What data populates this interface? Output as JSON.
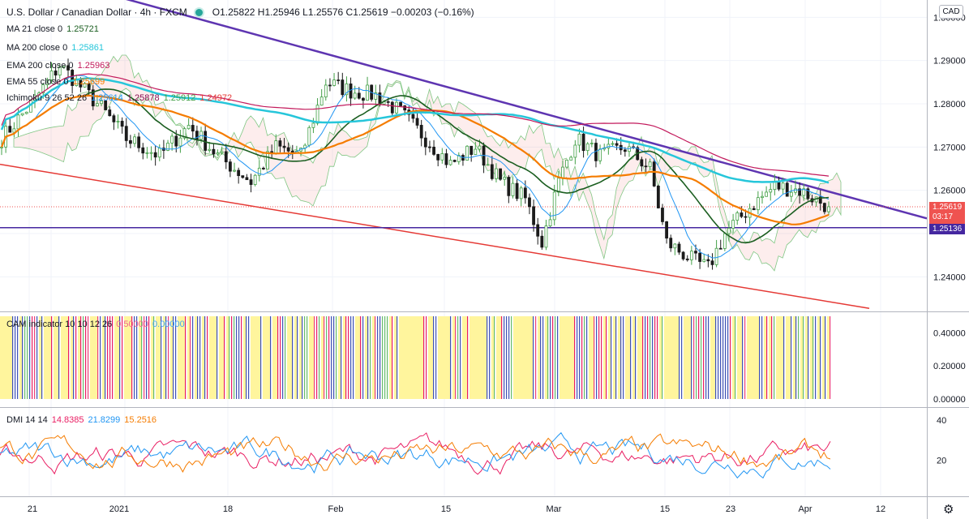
{
  "header": {
    "title": "U.S. Dollar / Canadian Dollar · 4h · FXCM",
    "ohlc": "O1.25822 H1.25946 L1.25576 C1.25619 −0.00203 (−0.16%)",
    "currency": "CAD"
  },
  "indicators": [
    {
      "label": "MA 21 close 0",
      "value": "1.25721",
      "color": "#1b5e20"
    },
    {
      "label": "MA 200 close 0",
      "value": "1.25861",
      "color": "#26c6da"
    },
    {
      "label": "EMA 200 close 0",
      "value": "1.25963",
      "color": "#c2185b"
    },
    {
      "label": "EMA 55 close 0",
      "value": "1.25699",
      "color": "#f57c00"
    },
    {
      "label": "Ichimoku 9 26 52 26",
      "values": [
        "1.25614",
        "1.25878",
        "1.25912",
        "1.24972"
      ],
      "colors": [
        "#2196f3",
        "#880e4f",
        "#43a047",
        "#e53935"
      ]
    }
  ],
  "price_labels": {
    "current": "1.25619",
    "countdown": "03:17",
    "horizontal": "1.25136",
    "current_color": "#ef5350",
    "horizontal_color": "#4527a0"
  },
  "cam": {
    "label": "CAM indicator 10 10 12 26",
    "values": [
      "0.50000",
      "0.00000"
    ],
    "colors": [
      "#f06292",
      "#42a5f5"
    ]
  },
  "dmi": {
    "label": "DMI 14 14",
    "values": [
      "14.8385",
      "21.8299",
      "15.2516"
    ],
    "colors": [
      "#e91e63",
      "#2196f3",
      "#f57c00"
    ]
  },
  "chart_data": [
    {
      "type": "candlestick",
      "title": "",
      "y_axis_ticks": [
        "1.30000",
        "1.29000",
        "1.28000",
        "1.27000",
        "1.26000",
        "1.24000"
      ],
      "ylim": [
        1.232,
        1.304
      ],
      "x_axis_ticks": [
        "21",
        "2021",
        "18",
        "Feb",
        "15",
        "Mar",
        "15",
        "23",
        "Apr",
        "12"
      ],
      "series": [
        {
          "name": "MA 21 close 0",
          "last": 1.25721
        },
        {
          "name": "MA 200 close 0",
          "last": 1.25861
        },
        {
          "name": "EMA 200 close 0",
          "last": 1.25963
        },
        {
          "name": "EMA 55 close 0",
          "last": 1.25699
        }
      ],
      "trendlines": [
        {
          "color": "#5e35b1",
          "from": 1.3045,
          "to": 1.2535
        },
        {
          "color": "#e53935",
          "from": 1.266,
          "to": 1.2327
        }
      ],
      "horizontal_line": 1.25136,
      "last_price": 1.25619
    },
    {
      "type": "bar",
      "name": "CAM indicator",
      "y_axis_ticks": [
        "0.40000",
        "0.20000",
        "0.00000"
      ],
      "ylim": [
        0,
        0.5
      ],
      "bar_colors": [
        "#fff59d",
        "#3f51b5",
        "#e91e63",
        "#66bb6a",
        "#ec407a"
      ]
    },
    {
      "type": "line",
      "name": "DMI",
      "y_axis_ticks": [
        "40",
        "20"
      ],
      "ylim": [
        2,
        46
      ],
      "series": [
        {
          "name": "DMI 14 14",
          "color": "#e91e63"
        },
        {
          "color": "#2196f3"
        },
        {
          "color": "#f57c00"
        }
      ]
    }
  ]
}
